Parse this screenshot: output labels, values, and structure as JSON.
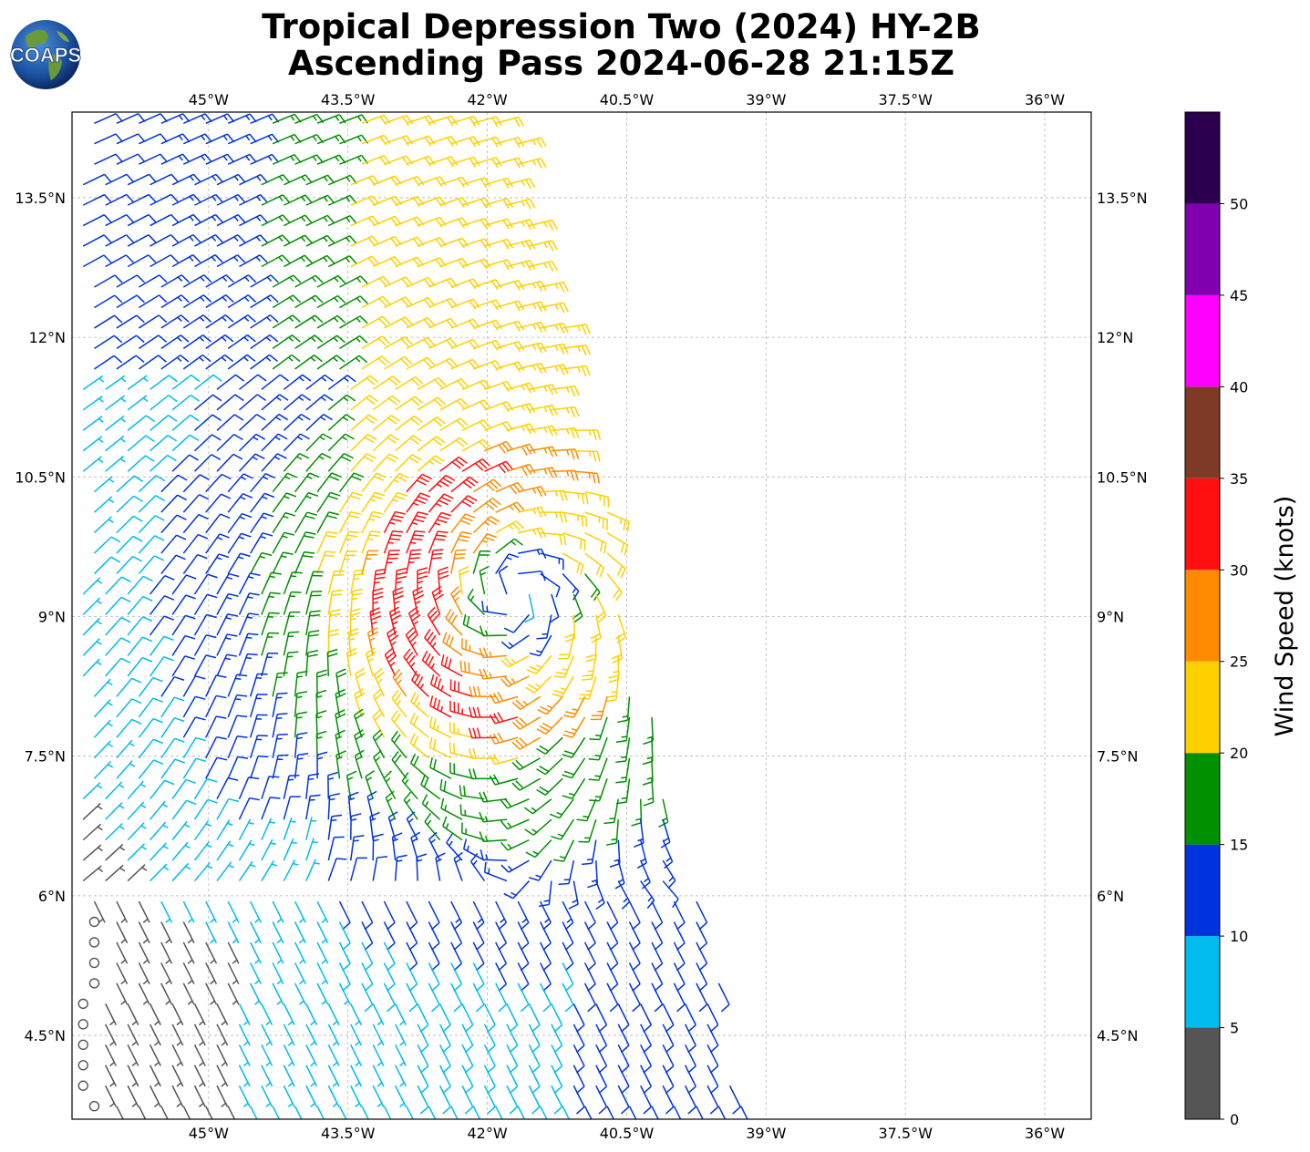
{
  "title_line1": "Tropical Depression Two (2024) HY-2B",
  "title_line2": "Ascending Pass 2024-06-28 21:15Z",
  "logo_text": "COAPS",
  "chart_data": {
    "type": "wind-barb-map",
    "lon_ticks": [
      -45,
      -43.5,
      -42,
      -40.5,
      -39,
      -37.5,
      -36
    ],
    "lon_tick_labels": [
      "45°W",
      "43.5°W",
      "42°W",
      "40.5°W",
      "39°W",
      "37.5°W",
      "36°W"
    ],
    "lat_ticks": [
      13.5,
      12,
      10.5,
      9,
      7.5,
      6,
      4.5
    ],
    "lat_tick_labels": [
      "13.5°N",
      "12°N",
      "10.5°N",
      "9°N",
      "7.5°N",
      "6°N",
      "4.5°N"
    ],
    "lon_range": [
      -46.47,
      -35.5
    ],
    "lat_range": [
      3.6,
      14.42
    ],
    "grid": true,
    "storm_center": {
      "lon": -41.7,
      "lat": 9.25
    },
    "colorbar": {
      "label": "Wind Speed (knots)",
      "tick_values": [
        0,
        5,
        10,
        15,
        20,
        25,
        30,
        35,
        40,
        45,
        50
      ],
      "tick_labels": [
        "0",
        "5",
        "10",
        "15",
        "20",
        "25",
        "30",
        "35",
        "40",
        "45",
        "50"
      ],
      "bounds": [
        0,
        5,
        10,
        15,
        20,
        25,
        30,
        35,
        40,
        45,
        50,
        55
      ],
      "colors": [
        "#555555",
        "#00bbee",
        "#0033dd",
        "#009000",
        "#ffd000",
        "#ff8c00",
        "#ff1010",
        "#7f3a27",
        "#ff00ff",
        "#8000b0",
        "#2a004f"
      ]
    },
    "wind_speed_zones": [
      {
        "description": "sector",
        "lon": -42.3,
        "lat": 9.0,
        "speed_kt": 33
      },
      {
        "lon": -43.0,
        "lat": 9.4,
        "speed_kt": 33
      },
      {
        "lon": -43.3,
        "lat": 9.0,
        "speed_kt": 32
      },
      {
        "lon": -42.7,
        "lat": 9.6,
        "speed_kt": 31
      }
    ]
  }
}
